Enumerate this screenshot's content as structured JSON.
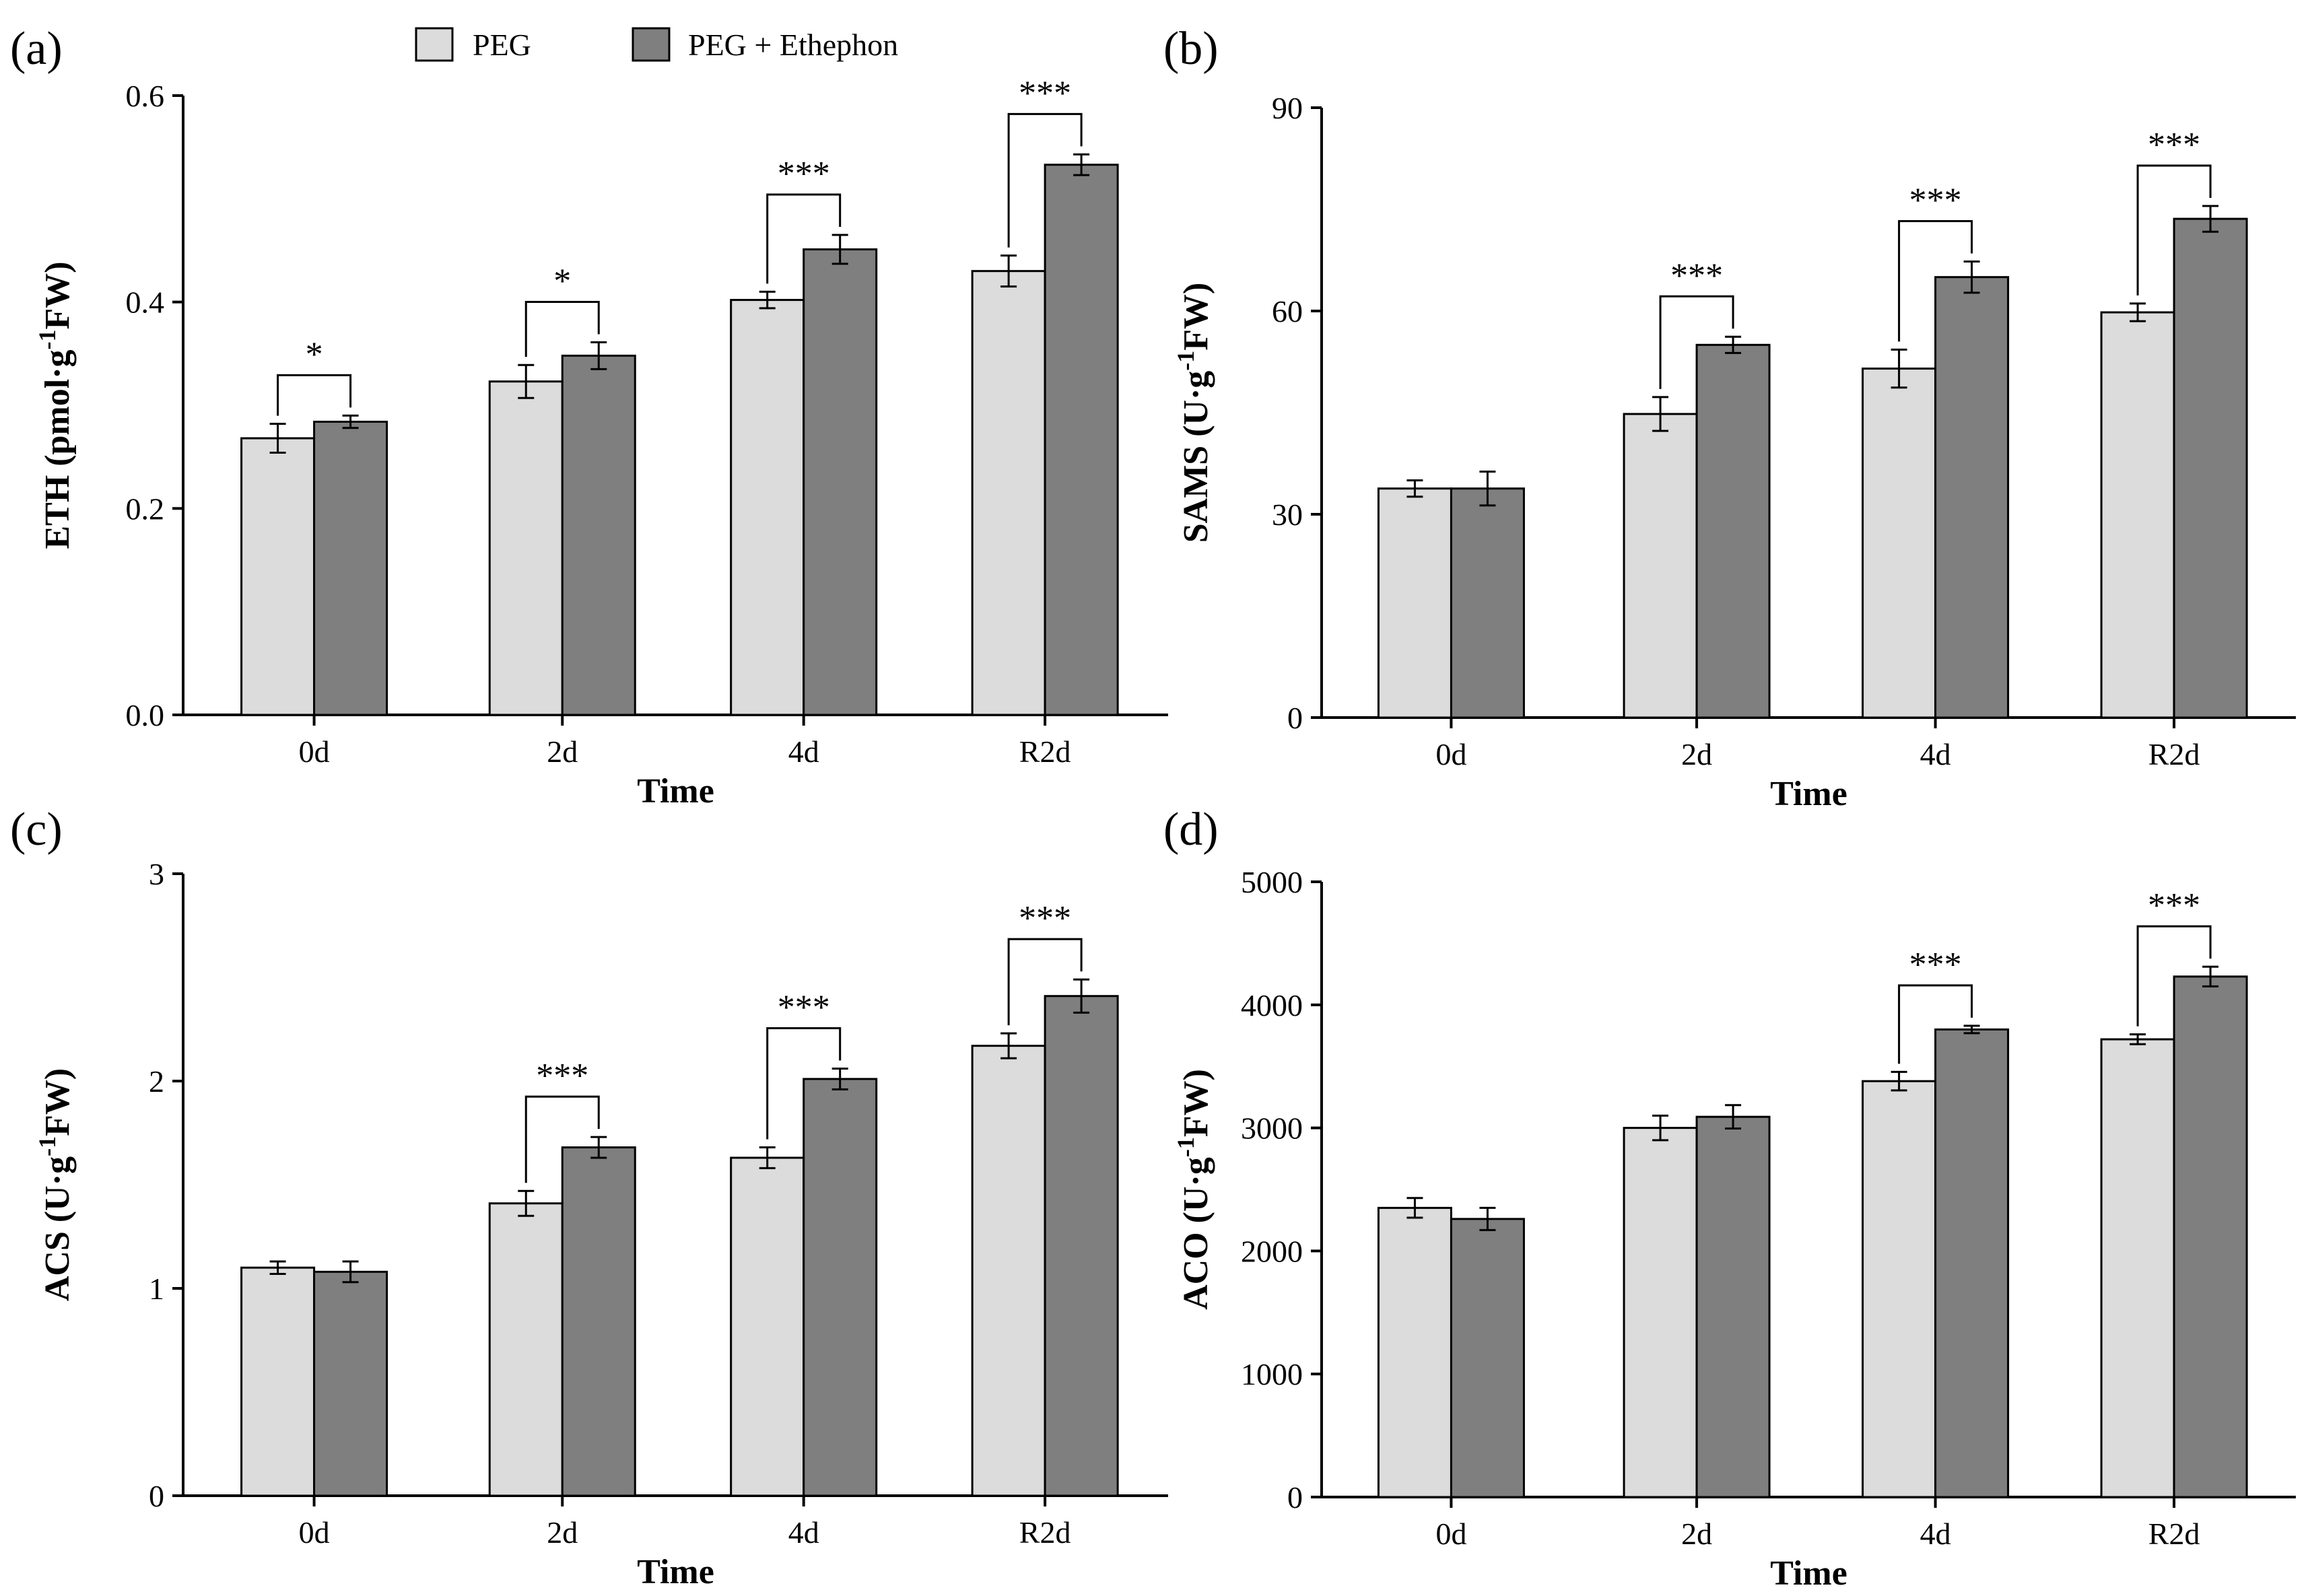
{
  "colors": {
    "series_0": "#dcdcdc",
    "series_1": "#7f7f7f",
    "stroke": "#000000"
  },
  "legend": [
    "PEG",
    "PEG + Ethephon"
  ],
  "chart_data": [
    {
      "panel": "(a)",
      "type": "bar",
      "categories": [
        "0d",
        "2d",
        "4d",
        "R2d"
      ],
      "series": [
        {
          "name": "PEG",
          "values": [
            0.268,
            0.323,
            0.402,
            0.43
          ],
          "errors": [
            0.014,
            0.016,
            0.008,
            0.015
          ]
        },
        {
          "name": "PEG + Ethephon",
          "values": [
            0.284,
            0.348,
            0.451,
            0.533
          ],
          "errors": [
            0.006,
            0.013,
            0.014,
            0.01
          ]
        }
      ],
      "significance": [
        "*",
        "*",
        "***",
        "***"
      ],
      "xlabel": "Time",
      "ylabel": {
        "pre": "ETH (pmol·g",
        "sup": "-1",
        "post": "FW)"
      },
      "ylim": [
        0,
        0.6
      ],
      "yticks": [
        0,
        0.2,
        0.4,
        0.6
      ],
      "ytick_labels": [
        "0.0",
        "0.2",
        "0.4",
        "0.6"
      ]
    },
    {
      "panel": "(b)",
      "type": "bar",
      "categories": [
        "0d",
        "2d",
        "4d",
        "R2d"
      ],
      "series": [
        {
          "name": "PEG",
          "values": [
            33.8,
            44.8,
            51.5,
            59.8
          ],
          "errors": [
            1.2,
            2.5,
            2.8,
            1.3
          ]
        },
        {
          "name": "PEG + Ethephon",
          "values": [
            33.8,
            55.0,
            65.0,
            73.6
          ],
          "errors": [
            2.5,
            1.2,
            2.3,
            1.9
          ]
        }
      ],
      "significance": [
        "",
        "***",
        "***",
        "***"
      ],
      "xlabel": "Time",
      "ylabel": {
        "pre": "SAMS (U·g",
        "sup": "-1",
        "post": "FW)"
      },
      "ylim": [
        0,
        90
      ],
      "yticks": [
        0,
        30,
        60,
        90
      ],
      "ytick_labels": [
        "0",
        "30",
        "60",
        "90"
      ]
    },
    {
      "panel": "(c)",
      "type": "bar",
      "categories": [
        "0d",
        "2d",
        "4d",
        "R2d"
      ],
      "series": [
        {
          "name": "PEG",
          "values": [
            1.1,
            1.41,
            1.63,
            2.17
          ],
          "errors": [
            0.03,
            0.06,
            0.05,
            0.06
          ]
        },
        {
          "name": "PEG + Ethephon",
          "values": [
            1.08,
            1.68,
            2.01,
            2.41
          ],
          "errors": [
            0.05,
            0.05,
            0.05,
            0.08
          ]
        }
      ],
      "significance": [
        "",
        "***",
        "***",
        "***"
      ],
      "xlabel": "Time",
      "ylabel": {
        "pre": "ACS (U·g",
        "sup": "-1",
        "post": "FW)"
      },
      "ylim": [
        0,
        3
      ],
      "yticks": [
        0,
        1,
        2,
        3
      ],
      "ytick_labels": [
        "0",
        "1",
        "2",
        "3"
      ]
    },
    {
      "panel": "(d)",
      "type": "bar",
      "categories": [
        "0d",
        "2d",
        "4d",
        "R2d"
      ],
      "series": [
        {
          "name": "PEG",
          "values": [
            2350,
            3000,
            3380,
            3720
          ],
          "errors": [
            80,
            100,
            75,
            40
          ]
        },
        {
          "name": "PEG + Ethephon",
          "values": [
            2260,
            3090,
            3800,
            4230
          ],
          "errors": [
            90,
            95,
            30,
            80
          ]
        }
      ],
      "significance": [
        "",
        "",
        "***",
        "***"
      ],
      "xlabel": "Time",
      "ylabel": {
        "pre": "ACO (U·g",
        "sup": "-1",
        "post": "FW)"
      },
      "ylim": [
        0,
        5000
      ],
      "yticks": [
        0,
        1000,
        2000,
        3000,
        4000,
        5000
      ],
      "ytick_labels": [
        "0",
        "1000",
        "2000",
        "3000",
        "4000",
        "5000"
      ]
    }
  ]
}
